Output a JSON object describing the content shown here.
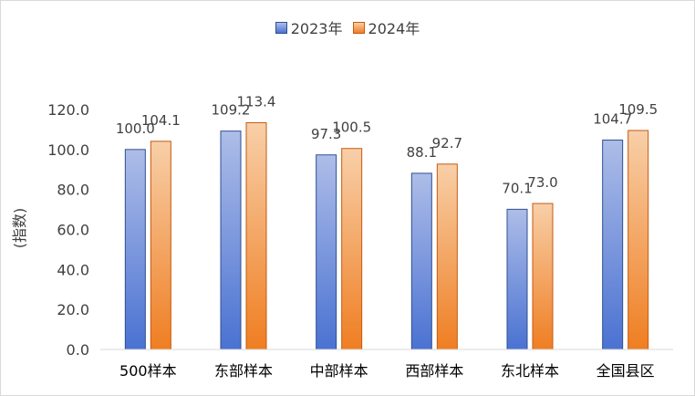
{
  "chart_data": {
    "type": "bar",
    "title": "",
    "xlabel": "",
    "ylabel": "(指数)",
    "ylim": [
      0,
      120
    ],
    "yticks": [
      0,
      20,
      40,
      60,
      80,
      100,
      120
    ],
    "ytick_labels": [
      "0.0",
      "20.0",
      "40.0",
      "60.0",
      "80.0",
      "100.0",
      "120.0"
    ],
    "categories": [
      "500样本",
      "东部样本",
      "中部样本",
      "西部样本",
      "东北样本",
      "全国县区"
    ],
    "series": [
      {
        "name": "2023年",
        "values": [
          100.0,
          109.2,
          97.3,
          88.1,
          70.1,
          104.7
        ],
        "labels": [
          "100.0",
          "109.2",
          "97.3",
          "88.1",
          "70.1",
          "104.7"
        ],
        "color_light": "#aebde8",
        "color_dark": "#4a72d2",
        "border": "#2f4f8f"
      },
      {
        "name": "2024年",
        "values": [
          104.1,
          113.4,
          100.5,
          92.7,
          73.0,
          109.5
        ],
        "labels": [
          "104.1",
          "113.4",
          "100.5",
          "92.7",
          "73.0",
          "109.5"
        ],
        "color_light": "#f8cfa8",
        "color_dark": "#ef7e22",
        "border": "#c55a11"
      }
    ],
    "grid": false,
    "legend_position": "top-center"
  }
}
